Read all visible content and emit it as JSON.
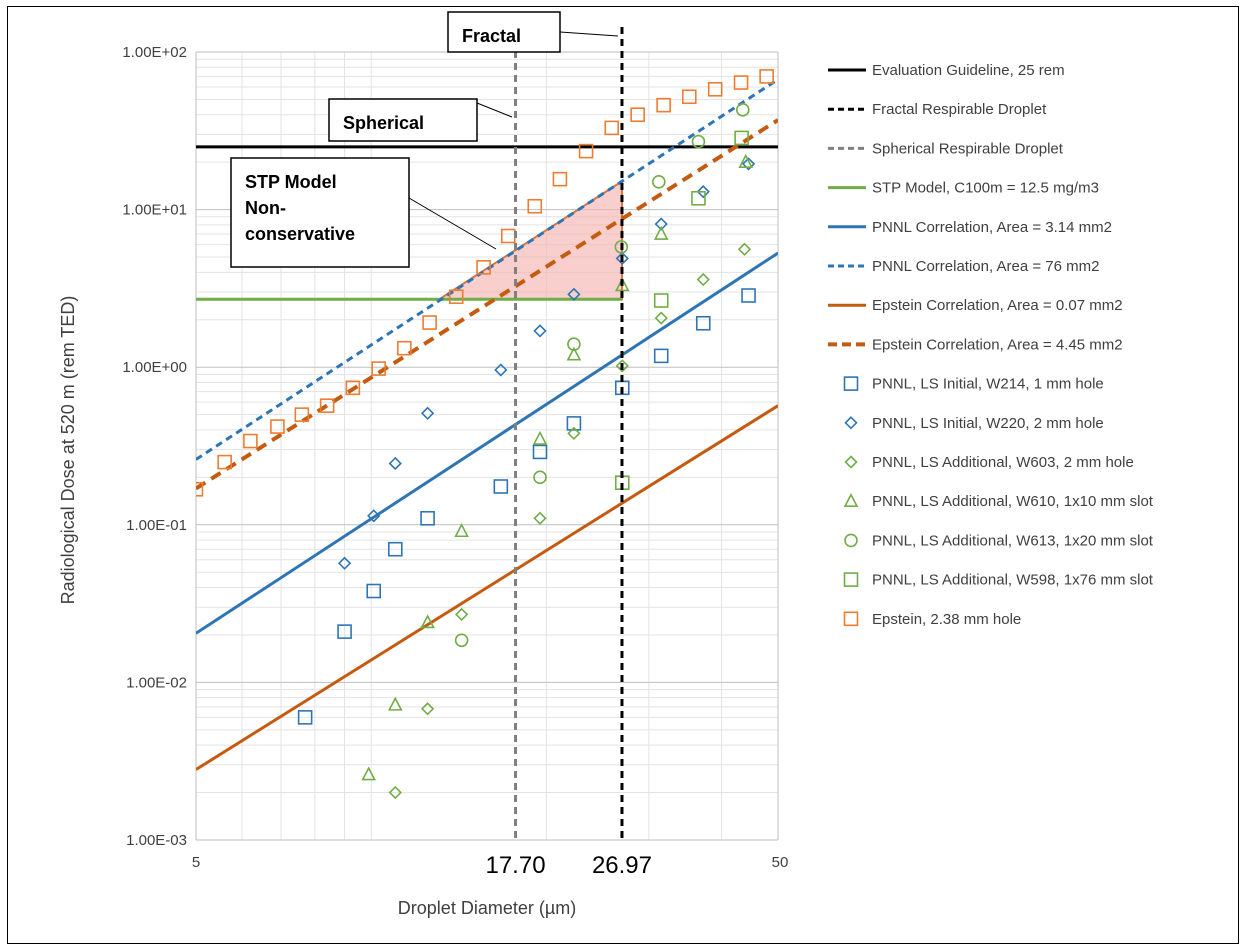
{
  "chart_data": {
    "type": "scatter",
    "title": "",
    "xlabel": "Droplet Diameter (µm)",
    "ylabel": "Radiological Dose at 520 m (rem TED)",
    "x_scale": "log",
    "y_scale": "log",
    "xlim": [
      5,
      50
    ],
    "ylim": [
      0.001,
      100
    ],
    "x_ticks": [
      "5",
      "50"
    ],
    "y_ticks": [
      "1.00E-03",
      "1.00E-02",
      "1.00E-01",
      "1.00E+00",
      "1.00E+01",
      "1.00E+02"
    ],
    "grid": true,
    "legend_position": "right",
    "vertical_markers": [
      {
        "name": "Spherical Respirable Droplet",
        "x": 17.7,
        "label": "17.70",
        "callout": "Spherical",
        "color": "#808080"
      },
      {
        "name": "Fractal Respirable Droplet",
        "x": 26.97,
        "label": "26.97",
        "callout": "Fractal",
        "color": "#000000"
      }
    ],
    "annotation": {
      "lines": [
        "STP Model",
        "Non-",
        "conservative"
      ]
    },
    "series": [
      {
        "name": "Evaluation Guideline, 25 rem",
        "kind": "line",
        "style": "solid",
        "color": "#000000",
        "x": [
          5,
          50
        ],
        "y": [
          25,
          25
        ]
      },
      {
        "name": "Fractal Respirable Droplet",
        "kind": "marker-legend",
        "style": "dashed",
        "color": "#000000"
      },
      {
        "name": "Spherical Respirable Droplet",
        "kind": "marker-legend",
        "style": "dashed",
        "color": "#808080"
      },
      {
        "name": "STP Model, C100m = 12.5 mg/m3",
        "kind": "line",
        "style": "solid",
        "color": "#70AD47",
        "x": [
          5,
          26.97
        ],
        "y": [
          2.7,
          2.7
        ]
      },
      {
        "name": "PNNL Correlation, Area = 3.14 mm2",
        "kind": "line",
        "style": "solid",
        "color": "#2E75B6",
        "x": [
          5,
          50
        ],
        "y": [
          0.0205,
          5.3
        ]
      },
      {
        "name": "PNNL Correlation, Area = 76 mm2",
        "kind": "line",
        "style": "dashed",
        "color": "#2E75B6",
        "x": [
          5,
          50
        ],
        "y": [
          0.26,
          67
        ]
      },
      {
        "name": "Epstein Correlation, Area = 0.07 mm2",
        "kind": "line",
        "style": "solid",
        "color": "#C55A11",
        "x": [
          5,
          50
        ],
        "y": [
          0.0028,
          0.57
        ]
      },
      {
        "name": "Epstein Correlation, Area = 4.45 mm2",
        "kind": "line",
        "style": "bold-dashed",
        "color": "#C55A11",
        "x": [
          5,
          50
        ],
        "y": [
          0.17,
          37
        ]
      },
      {
        "name": "PNNL, LS Initial, W214, 1 mm hole",
        "kind": "scatter",
        "marker": "square",
        "color": "#2E75B6",
        "x": [
          7.7,
          9.0,
          10.1,
          11.0,
          12.5,
          16.7,
          19.5,
          22.3,
          27.0,
          31.5,
          37.2,
          44.5
        ],
        "y": [
          0.006,
          0.021,
          0.038,
          0.07,
          0.11,
          0.175,
          0.29,
          0.44,
          0.74,
          1.18,
          1.9,
          2.85
        ]
      },
      {
        "name": "PNNL, LS Initial, W220, 2 mm hole",
        "kind": "scatter",
        "marker": "diamond",
        "color": "#2E75B6",
        "x": [
          9.0,
          10.1,
          11.0,
          12.5,
          16.7,
          19.5,
          22.3,
          27.0,
          31.5,
          37.2,
          44.5
        ],
        "y": [
          0.057,
          0.114,
          0.245,
          0.51,
          0.96,
          1.7,
          2.9,
          4.9,
          8.1,
          13,
          19.5
        ]
      },
      {
        "name": "PNNL, LS Additional, W603, 2 mm hole",
        "kind": "scatter",
        "marker": "diamond",
        "color": "#70AD47",
        "x": [
          11.0,
          12.5,
          14.3,
          19.5,
          22.3,
          27.0,
          31.5,
          37.2,
          43.8
        ],
        "y": [
          0.002,
          0.0068,
          0.027,
          0.11,
          0.38,
          1.02,
          2.05,
          3.6,
          5.6
        ]
      },
      {
        "name": "PNNL, LS Additional, W610, 1x10 mm slot",
        "kind": "scatter",
        "marker": "triangle",
        "color": "#70AD47",
        "x": [
          9.9,
          11.0,
          12.5,
          14.3,
          19.5,
          22.3,
          27.0,
          31.5,
          44.0
        ],
        "y": [
          0.0026,
          0.0072,
          0.024,
          0.091,
          0.35,
          1.2,
          3.3,
          7,
          20
        ]
      },
      {
        "name": "PNNL, LS Additional, W613, 1x20 mm slot",
        "kind": "scatter",
        "marker": "circle",
        "color": "#70AD47",
        "x": [
          14.3,
          19.5,
          22.3,
          26.9,
          31.2,
          36.5,
          43.5
        ],
        "y": [
          0.0185,
          0.2,
          1.4,
          5.8,
          15,
          27,
          43
        ]
      },
      {
        "name": "PNNL, LS Additional, W598, 1x76 mm slot",
        "kind": "scatter",
        "marker": "square",
        "color": "#70AD47",
        "x": [
          27.0,
          31.5,
          36.5,
          43.3
        ],
        "y": [
          0.185,
          2.65,
          11.8,
          28.5
        ]
      },
      {
        "name": "Epstein, 2.38 mm hole",
        "kind": "scatter",
        "marker": "square",
        "color": "#ED7D31",
        "x": [
          5.0,
          5.6,
          6.2,
          6.9,
          7.6,
          8.4,
          9.3,
          10.3,
          11.4,
          12.6,
          14.0,
          15.6,
          17.2,
          19.1,
          21.1,
          23.4,
          25.9,
          28.7,
          31.8,
          35.2,
          39.0,
          43.2,
          47.8
        ],
        "y": [
          0.168,
          0.25,
          0.34,
          0.42,
          0.5,
          0.57,
          0.74,
          0.98,
          1.32,
          1.92,
          2.8,
          4.3,
          6.8,
          10.5,
          15.6,
          23.5,
          33,
          40,
          46,
          52,
          58,
          64,
          70
        ]
      }
    ]
  },
  "legend": {
    "items": [
      "Evaluation Guideline, 25 rem",
      "Fractal Respirable Droplet",
      "Spherical Respirable Droplet",
      "STP Model, C100m = 12.5 mg/m3",
      "PNNL Correlation, Area = 3.14 mm2",
      "PNNL Correlation, Area = 76 mm2",
      "Epstein Correlation, Area = 0.07 mm2",
      "Epstein Correlation, Area = 4.45 mm2",
      "PNNL, LS Initial, W214, 1 mm hole",
      "PNNL, LS Initial, W220, 2 mm hole",
      "PNNL, LS Additional, W603, 2 mm hole",
      "PNNL, LS Additional, W610, 1x10 mm slot",
      "PNNL, LS Additional, W613, 1x20 mm slot",
      "PNNL, LS Additional, W598, 1x76 mm slot",
      "Epstein, 2.38 mm hole"
    ]
  }
}
